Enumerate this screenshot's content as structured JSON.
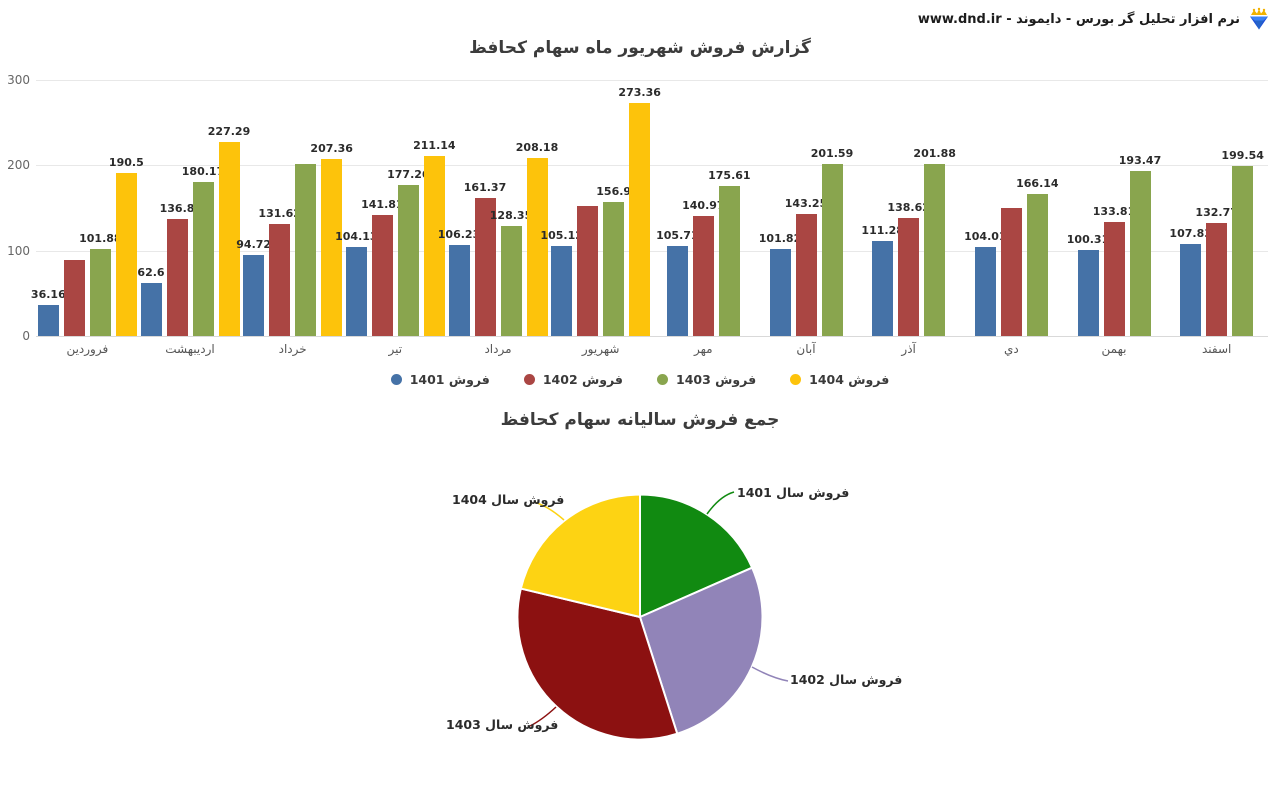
{
  "header": {
    "brand_text": "نرم افزار تحلیل گر بورس - دایموند - www.dnd.ir",
    "logo_icon": "diamond-with-crown"
  },
  "colors": {
    "background": "#ffffff",
    "grid": "#e8e8e8",
    "axis_text": "#666666",
    "value_label": "#2b2b2b",
    "title_text": "#3c3c3c"
  },
  "chart_data": [
    {
      "type": "bar",
      "title": "گزارش فروش شهریور ماه سهام کحافظ",
      "categories": [
        "فروردین",
        "اردیبهشت",
        "خرداد",
        "تیر",
        "مرداد",
        "شهریور",
        "مهر",
        "آبان",
        "آذر",
        "دي",
        "بهمن",
        "اسفند"
      ],
      "series": [
        {
          "name": "فروش 1401",
          "color": "#4572a7",
          "values": [
            36.16,
            62.6,
            94.72,
            104.13,
            106.23,
            105.12,
            105.71,
            101.82,
            111.28,
            104.01,
            100.31,
            107.83
          ],
          "labels": [
            "36.16",
            "62.6",
            "94.72",
            "104.13",
            "106.23",
            "105.12",
            "105.71",
            "101.82",
            "111.28",
            "104.01",
            "100.31",
            "107.83"
          ]
        },
        {
          "name": "فروش 1402",
          "color": "#aa4643",
          "values": [
            89.5,
            136.8,
            131.62,
            141.81,
            161.37,
            152.5,
            140.97,
            143.25,
            138.62,
            150,
            133.81,
            132.77
          ],
          "labels": [
            "",
            "136.8",
            "131.62",
            "141.81",
            "161.37",
            "",
            "140.97",
            "143.25",
            "138.62",
            "",
            "133.81",
            "132.77"
          ]
        },
        {
          "name": "فروش 1403",
          "color": "#89a54e",
          "values": [
            101.88,
            180.17,
            201.3,
            177.26,
            128.35,
            156.9,
            175.61,
            201.59,
            201.88,
            166.14,
            193.47,
            199.54
          ],
          "labels": [
            "101.88",
            "180.17",
            "",
            "177.26",
            "128.35",
            "156.9",
            "175.61",
            "201.59",
            "201.88",
            "166.14",
            "193.47",
            "199.54"
          ]
        },
        {
          "name": "فروش 1404",
          "color": "#fdc30b",
          "values": [
            190.5,
            227.29,
            207.36,
            211.14,
            208.18,
            273.36,
            null,
            null,
            null,
            null,
            null,
            null
          ],
          "labels": [
            "190.5",
            "227.29",
            "207.36",
            "211.14",
            "208.18",
            "273.36",
            "",
            "",
            "",
            "",
            "",
            ""
          ]
        }
      ],
      "ylim": [
        0,
        300
      ],
      "yticks": [
        0,
        100,
        200,
        300
      ],
      "grid": true,
      "legend_position": "bottom"
    },
    {
      "type": "pie",
      "title": "جمع فروش سالیانه سهام کحافظ",
      "slices": [
        {
          "label": "فروش سال 1401",
          "value": 1139.92,
          "share_pct": 18.4,
          "color": "#118a11"
        },
        {
          "label": "فروش سال 1402",
          "value": 1653.02,
          "share_pct": 26.7,
          "color": "#9184b8"
        },
        {
          "label": "فروش سال 1403",
          "value": 2084.09,
          "share_pct": 33.6,
          "color": "#8c1111"
        },
        {
          "label": "فروش سال 1404",
          "value": 1317.83,
          "share_pct": 21.3,
          "color": "#fdd313"
        }
      ]
    }
  ]
}
